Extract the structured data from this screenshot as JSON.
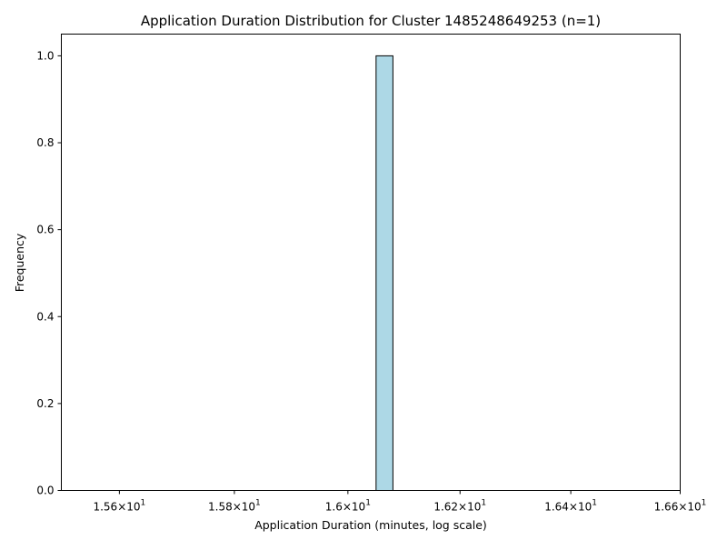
{
  "chart_data": {
    "type": "bar",
    "title": "Application Duration Distribution for Cluster 1485248649253 (n=1)",
    "xlabel": "Application Duration (minutes, log scale)",
    "ylabel": "Frequency",
    "x_scale": "log",
    "xlim": [
      15.5,
      16.6
    ],
    "ylim": [
      0,
      1.05
    ],
    "bar_color": "#add8e6",
    "bar_edge_color": "#000000",
    "grid": false,
    "bins": [
      {
        "x0": 16.05,
        "x1": 16.08,
        "count": 1.0
      }
    ],
    "x_ticks": [
      {
        "value": 15.6,
        "mantissa": "1.56",
        "base": "10",
        "exponent": "1"
      },
      {
        "value": 15.8,
        "mantissa": "1.58",
        "base": "10",
        "exponent": "1"
      },
      {
        "value": 16.0,
        "mantissa": "1.6",
        "base": "10",
        "exponent": "1"
      },
      {
        "value": 16.2,
        "mantissa": "1.62",
        "base": "10",
        "exponent": "1"
      },
      {
        "value": 16.4,
        "mantissa": "1.64",
        "base": "10",
        "exponent": "1"
      },
      {
        "value": 16.6,
        "mantissa": "1.66",
        "base": "10",
        "exponent": "1"
      }
    ],
    "y_ticks": [
      {
        "value": 0.0,
        "label": "0.0"
      },
      {
        "value": 0.2,
        "label": "0.2"
      },
      {
        "value": 0.4,
        "label": "0.4"
      },
      {
        "value": 0.6,
        "label": "0.6"
      },
      {
        "value": 0.8,
        "label": "0.8"
      },
      {
        "value": 1.0,
        "label": "1.0"
      }
    ]
  }
}
